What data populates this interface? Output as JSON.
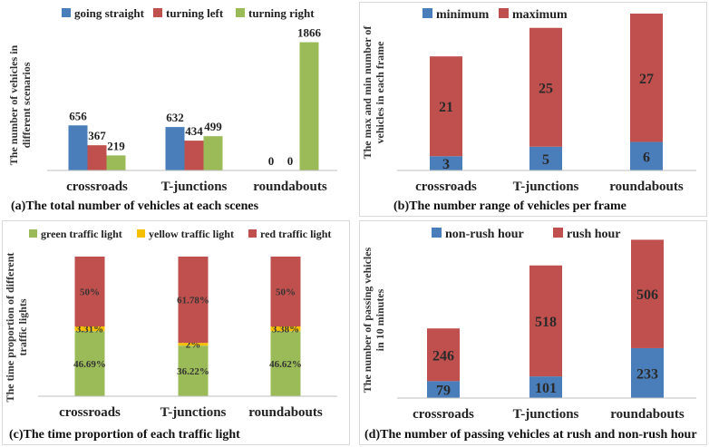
{
  "colors": {
    "blue": "#4a7ebb",
    "red": "#c0504d",
    "green": "#9bbb59",
    "yellow": "#f5c000"
  },
  "captions": {
    "a": "(a)The total number of vehicles at each scenes",
    "b": "(b)The number range of vehicles per frame",
    "c": "(c)The time proportion of each traffic light",
    "d": "(d)The number of passing vehicles at rush and non-rush hour"
  },
  "chart_data": [
    {
      "type": "bar",
      "categories": [
        "crossroads",
        "T-junctions",
        "roundabouts"
      ],
      "series": [
        {
          "name": "going straight",
          "values": [
            656,
            632,
            0
          ]
        },
        {
          "name": "turning left",
          "values": [
            367,
            434,
            0
          ]
        },
        {
          "name": "turning right",
          "values": [
            219,
            499,
            1866
          ]
        }
      ],
      "ylabel": "The number of vehicles in different scenarios",
      "ylim": [
        0,
        1900
      ],
      "grid": false,
      "legend": "top"
    },
    {
      "type": "bar",
      "stacked": true,
      "categories": [
        "crossroads",
        "T-junctions",
        "roundabouts"
      ],
      "series": [
        {
          "name": "minimum",
          "values": [
            3,
            5,
            6
          ]
        },
        {
          "name": "maximum",
          "values": [
            21,
            25,
            27
          ]
        }
      ],
      "ylabel": "The max and min number of vehicles in each frame",
      "ylim": [
        0,
        33
      ],
      "grid": false,
      "legend": "top"
    },
    {
      "type": "bar",
      "stacked": true,
      "categories": [
        "crossroads",
        "T-junctions",
        "roundabouts"
      ],
      "series": [
        {
          "name": "green traffic light",
          "values": [
            46.69,
            36.22,
            46.62
          ],
          "labels": [
            "46.69%",
            "36.22%",
            "46.62%"
          ]
        },
        {
          "name": "yellow traffic light",
          "values": [
            3.31,
            2,
            3.38
          ],
          "labels": [
            "3.31%",
            "2%",
            "3.38%"
          ]
        },
        {
          "name": "red traffic light",
          "values": [
            50,
            61.78,
            50
          ],
          "labels": [
            "50%",
            "61.78%",
            "50%"
          ]
        }
      ],
      "ylabel": "The time proportion of different traffic lights",
      "ylim": [
        0,
        100
      ],
      "grid": false,
      "legend": "top"
    },
    {
      "type": "bar",
      "stacked": true,
      "categories": [
        "crossroads",
        "T-junctions",
        "roundabouts"
      ],
      "series": [
        {
          "name": "non-rush hour",
          "values": [
            79,
            101,
            233
          ]
        },
        {
          "name": "rush hour",
          "values": [
            246,
            518,
            506
          ]
        }
      ],
      "ylabel": "The number of passing vehicles in 10 minutes",
      "ylim": [
        0,
        745
      ],
      "grid": false,
      "legend": "top"
    }
  ]
}
